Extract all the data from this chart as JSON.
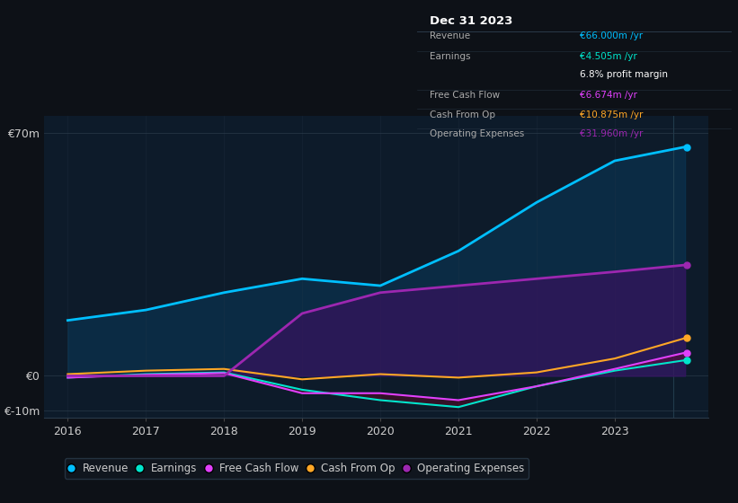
{
  "background_color": "#0d1117",
  "plot_bg_color": "#0d1b2a",
  "years": [
    2016,
    2017,
    2018,
    2019,
    2020,
    2021,
    2022,
    2023,
    2023.9
  ],
  "revenue": [
    16,
    19,
    24,
    28,
    26,
    36,
    50,
    62,
    66
  ],
  "earnings": [
    -0.5,
    0.5,
    1.0,
    -4,
    -7,
    -9,
    -3,
    1.5,
    4.5
  ],
  "free_cash_flow": [
    -0.5,
    0.3,
    0.8,
    -5,
    -5,
    -7,
    -3,
    2,
    6.674
  ],
  "cash_from_op": [
    0.5,
    1.5,
    2,
    -1,
    0.5,
    -0.5,
    1,
    5,
    10.875
  ],
  "op_expenses": [
    0,
    0,
    0,
    18,
    24,
    26,
    28,
    30,
    31.96
  ],
  "revenue_color": "#00bfff",
  "earnings_color": "#00e5cc",
  "fcf_color": "#e040fb",
  "cfo_color": "#ffa726",
  "opex_color": "#9c27b0",
  "revenue_fill": "#0a3a5a",
  "opex_fill": "#3a1060",
  "ylim": [
    -12,
    75
  ],
  "xticks": [
    2016,
    2017,
    2018,
    2019,
    2020,
    2021,
    2022,
    2023
  ],
  "info_box": {
    "title": "Dec 31 2023",
    "rows": [
      {
        "label": "Revenue",
        "value": "€66.000m /yr",
        "value_color": "#00bfff"
      },
      {
        "label": "Earnings",
        "value": "€4.505m /yr",
        "value_color": "#00e5cc"
      },
      {
        "label": "",
        "value": "6.8% profit margin",
        "value_color": "#ffffff"
      },
      {
        "label": "Free Cash Flow",
        "value": "€6.674m /yr",
        "value_color": "#e040fb"
      },
      {
        "label": "Cash From Op",
        "value": "€10.875m /yr",
        "value_color": "#ffa726"
      },
      {
        "label": "Operating Expenses",
        "value": "€31.960m /yr",
        "value_color": "#9c27b0"
      }
    ],
    "box_color": "#111820",
    "border_color": "#2a3a4a",
    "title_color": "#ffffff",
    "label_color": "#aaaaaa"
  },
  "legend_entries": [
    {
      "label": "Revenue",
      "color": "#00bfff"
    },
    {
      "label": "Earnings",
      "color": "#00e5cc"
    },
    {
      "label": "Free Cash Flow",
      "color": "#e040fb"
    },
    {
      "label": "Cash From Op",
      "color": "#ffa726"
    },
    {
      "label": "Operating Expenses",
      "color": "#9c27b0"
    }
  ],
  "dot_vals": [
    66,
    31.96,
    10.875,
    6.674,
    4.505
  ],
  "dot_colors": [
    "#00bfff",
    "#9c27b0",
    "#ffa726",
    "#e040fb",
    "#00e5cc"
  ]
}
